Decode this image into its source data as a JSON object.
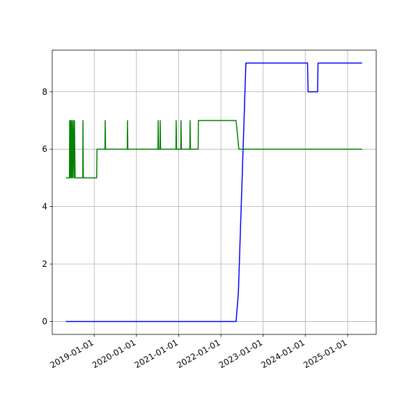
{
  "chart_data": {
    "type": "line",
    "xlim": [
      "2018-01-03",
      "2025-09-05"
    ],
    "xticks": [
      "2019-01-01",
      "2020-01-01",
      "2021-01-01",
      "2022-01-01",
      "2023-01-01",
      "2024-01-01",
      "2025-01-01"
    ],
    "ylim": [
      -0.45,
      9.45
    ],
    "yticks": [
      0,
      2,
      4,
      6,
      8
    ],
    "grid": true,
    "series": [
      {
        "color": "#0000ff",
        "x": [
          "2018-05-01",
          "2022-05-12",
          "2022-06-01",
          "2022-08-05",
          "2024-01-20",
          "2024-01-25",
          "2024-04-16",
          "2024-04-20",
          "2025-05-06"
        ],
        "values": [
          0,
          0,
          1,
          9,
          9,
          8,
          8,
          9,
          9
        ]
      },
      {
        "color": "#008000",
        "x": [
          "2018-05-01",
          "2018-06-01",
          "2018-06-03",
          "2018-06-08",
          "2018-06-12",
          "2018-06-18",
          "2018-06-22",
          "2018-06-28",
          "2018-07-03",
          "2018-07-10",
          "2018-07-14",
          "2018-07-20",
          "2018-09-24",
          "2018-09-26",
          "2018-09-29",
          "2019-01-22",
          "2019-01-25",
          "2019-04-04",
          "2019-04-06",
          "2019-04-09",
          "2019-10-14",
          "2019-10-16",
          "2019-10-19",
          "2020-07-05",
          "2020-07-07",
          "2020-07-10",
          "2020-07-23",
          "2020-07-25",
          "2020-07-28",
          "2020-12-08",
          "2020-12-10",
          "2020-12-13",
          "2021-01-19",
          "2021-01-21",
          "2021-01-24",
          "2021-04-07",
          "2021-04-09",
          "2021-04-12",
          "2021-06-18",
          "2021-06-20",
          "2022-05-12",
          "2022-06-05",
          "2025-05-06"
        ],
        "values": [
          5,
          5,
          7,
          5,
          7,
          5,
          7,
          5,
          7,
          5,
          7,
          5,
          5,
          7,
          5,
          5,
          6,
          6,
          7,
          6,
          6,
          7,
          6,
          6,
          7,
          6,
          6,
          7,
          6,
          6,
          7,
          6,
          6,
          7,
          6,
          6,
          7,
          6,
          6,
          7,
          7,
          6,
          6
        ]
      }
    ]
  }
}
